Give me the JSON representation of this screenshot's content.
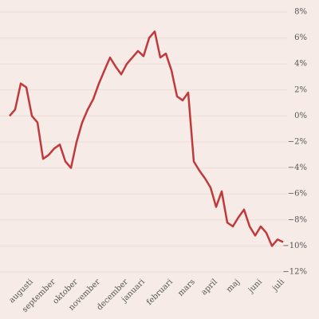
{
  "chart_data": {
    "type": "line",
    "categories": [
      null,
      null,
      null,
      null,
      "augusti",
      null,
      null,
      null,
      "september",
      null,
      null,
      null,
      "oktober",
      null,
      null,
      null,
      "november",
      null,
      null,
      null,
      null,
      "december",
      null,
      null,
      "januari",
      null,
      null,
      null,
      null,
      "februari",
      null,
      null,
      null,
      "mars",
      null,
      null,
      null,
      "april",
      null,
      null,
      null,
      "maj",
      null,
      null,
      null,
      "juni",
      null,
      null,
      null,
      "juli"
    ],
    "series": [
      {
        "color": "#c0393b",
        "values": [
          0,
          0.5,
          2.5,
          2.2,
          0,
          -0.5,
          -3.3,
          -3.0,
          -2.5,
          -2.2,
          -3.5,
          -4.0,
          -2.0,
          -0.5,
          0.5,
          1.3,
          2.5,
          3.5,
          4.5,
          3.8,
          3.2,
          4.0,
          4.5,
          5.0,
          4.6,
          6.0,
          6.5,
          4.5,
          4.8,
          3.5,
          1.5,
          1.2,
          1.8,
          -3.5,
          -4.2,
          -4.8,
          -5.5,
          -7.0,
          -5.8,
          -8.2,
          -8.5,
          -7.8,
          -7.2,
          -8.5,
          -9.2,
          -8.5,
          -9.0,
          -10.0,
          -9.5,
          -9.7
        ]
      }
    ],
    "ylim": [
      -12,
      8
    ],
    "yticks": [
      {
        "value": 8,
        "label": "8%"
      },
      {
        "value": 6,
        "label": "6%"
      },
      {
        "value": 4,
        "label": "4%"
      },
      {
        "value": 2,
        "label": "2%"
      },
      {
        "value": 0,
        "label": "0%"
      },
      {
        "value": -2,
        "label": "−2%"
      },
      {
        "value": -4,
        "label": "−4%"
      },
      {
        "value": -6,
        "label": "−6%"
      },
      {
        "value": -8,
        "label": "−8%"
      },
      {
        "value": -10,
        "label": "−10%"
      },
      {
        "value": -12,
        "label": "−12%"
      }
    ],
    "grid": true
  }
}
